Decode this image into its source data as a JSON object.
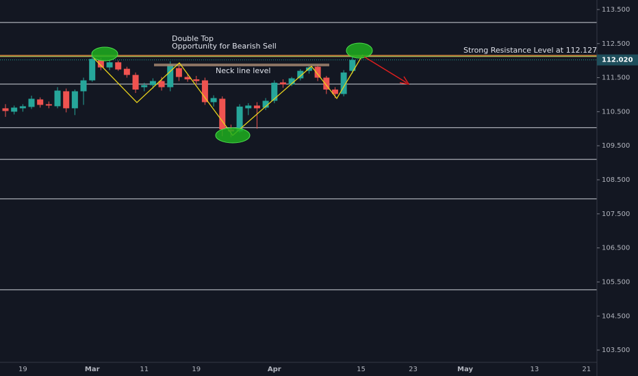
{
  "chart_data": {
    "type": "candlestick",
    "categories": [
      null,
      null,
      "19",
      null,
      null,
      null,
      null,
      null,
      null,
      null,
      "Mar",
      null,
      null,
      null,
      null,
      null,
      "11",
      null,
      null,
      null,
      null,
      null,
      "19",
      null,
      null,
      null,
      null,
      null,
      null,
      null,
      null,
      "Apr",
      null,
      null,
      null,
      null,
      null,
      null,
      null,
      null,
      null,
      "15",
      null,
      null,
      null,
      null,
      null,
      "23",
      null,
      null,
      null,
      null,
      null,
      "May",
      null,
      null,
      null,
      null,
      null,
      null,
      null,
      "13",
      null,
      null,
      null,
      null,
      null,
      "21",
      null
    ],
    "open": [
      110.6,
      110.5,
      110.6,
      110.64,
      110.86,
      110.72,
      110.66,
      111.1,
      110.6,
      111.1,
      111.42,
      112.02,
      111.8,
      111.95,
      111.76,
      111.58,
      111.22,
      111.28,
      111.4,
      111.22,
      111.78,
      111.52,
      111.45,
      111.42,
      110.78,
      110.88,
      109.98,
      109.92,
      110.6,
      110.68,
      110.62,
      110.82,
      111.36,
      111.3,
      111.48,
      111.7,
      111.82,
      111.5,
      111.15,
      111.02,
      111.7,
      null,
      null,
      null,
      null,
      null,
      null,
      null,
      null,
      null,
      null,
      null,
      null,
      null,
      null,
      null,
      null,
      null,
      null,
      null,
      null,
      null,
      null,
      null,
      null,
      null,
      null,
      null,
      null
    ],
    "high": [
      110.72,
      110.68,
      110.72,
      110.97,
      110.92,
      110.8,
      111.22,
      111.18,
      111.15,
      111.5,
      112.15,
      112.08,
      112.0,
      112.0,
      111.82,
      111.65,
      111.35,
      111.48,
      111.52,
      111.98,
      111.85,
      111.6,
      111.55,
      111.5,
      110.98,
      110.95,
      110.12,
      110.72,
      110.75,
      110.78,
      110.9,
      111.42,
      111.45,
      111.52,
      111.75,
      111.86,
      111.88,
      111.55,
      111.22,
      111.72,
      112.12,
      null,
      null,
      null,
      null,
      null,
      null,
      null,
      null,
      null,
      null,
      null,
      null,
      null,
      null,
      null,
      null,
      null,
      null,
      null,
      null,
      null,
      null,
      null,
      null,
      null,
      null,
      null,
      null
    ],
    "low": [
      110.35,
      110.42,
      110.5,
      110.58,
      110.62,
      110.6,
      110.6,
      110.48,
      110.4,
      110.7,
      111.38,
      111.72,
      111.72,
      111.7,
      111.5,
      111.05,
      111.1,
      111.18,
      111.12,
      111.1,
      111.4,
      111.38,
      111.3,
      110.7,
      110.65,
      109.78,
      109.75,
      109.88,
      110.4,
      110.0,
      110.55,
      110.75,
      111.2,
      111.25,
      111.42,
      111.62,
      111.4,
      111.02,
      110.9,
      110.95,
      111.62,
      null,
      null,
      null,
      null,
      null,
      null,
      null,
      null,
      null,
      null,
      null,
      null,
      null,
      null,
      null,
      null,
      null,
      null,
      null,
      null,
      null,
      null,
      null,
      null,
      null,
      null,
      null,
      null
    ],
    "close": [
      110.52,
      110.62,
      110.66,
      110.88,
      110.7,
      110.68,
      111.12,
      110.6,
      111.1,
      111.42,
      112.05,
      111.8,
      111.95,
      111.74,
      111.58,
      111.15,
      111.28,
      111.4,
      111.22,
      111.88,
      111.52,
      111.45,
      111.4,
      110.78,
      110.9,
      109.98,
      109.92,
      110.65,
      110.68,
      110.6,
      110.82,
      111.35,
      111.3,
      111.48,
      111.7,
      111.8,
      111.5,
      111.15,
      111.02,
      111.65,
      112.02,
      null,
      null,
      null,
      null,
      null,
      null,
      null,
      null,
      null,
      null,
      null,
      null,
      null,
      null,
      null,
      null,
      null,
      null,
      null,
      null,
      null,
      null,
      null,
      null,
      null,
      null,
      null,
      null
    ],
    "up_color": "#26a69a",
    "down_color": "#ef5350",
    "ylim": [
      103.14,
      113.78
    ],
    "yticks": [
      {
        "value": 113.5,
        "label": "113.500"
      },
      {
        "value": 112.5,
        "label": "112.500"
      },
      {
        "value": 111.5,
        "label": "111.500"
      },
      {
        "value": 110.5,
        "label": "110.500"
      },
      {
        "value": 109.5,
        "label": "109.500"
      },
      {
        "value": 108.5,
        "label": "108.500"
      },
      {
        "value": 107.5,
        "label": "107.500"
      },
      {
        "value": 106.5,
        "label": "106.500"
      },
      {
        "value": 105.5,
        "label": "105.500"
      },
      {
        "value": 104.5,
        "label": "104.500"
      },
      {
        "value": 103.5,
        "label": "103.500"
      }
    ],
    "levels": [
      113.12,
      111.31,
      110.03,
      109.1,
      107.94,
      105.27
    ],
    "resistance": 112.127,
    "last_price": {
      "value": 112.02,
      "label": "112.020"
    },
    "annotations": [
      "Double Top",
      "Opportunity for Bearish Sell",
      "Neck line level",
      "Strong Resistance Level at 112.127"
    ]
  }
}
